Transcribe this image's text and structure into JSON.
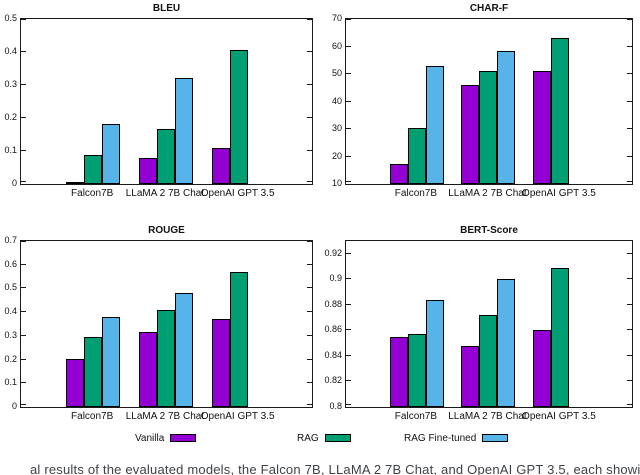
{
  "figure": {
    "background": "#ffffff",
    "series_colors": {
      "vanilla": "#9400d3",
      "rag": "#009e73",
      "rag_fine_tuned": "#56b4e9"
    }
  },
  "chart_data": [
    {
      "type": "bar",
      "title": "BLEU",
      "categories": [
        "Falcon7B",
        "LLaMA 2 7B Chat",
        "OpenAI GPT 3.5"
      ],
      "series": [
        {
          "name": "Vanilla",
          "color": "#9400d3",
          "values": [
            0.005,
            0.078,
            0.11
          ]
        },
        {
          "name": "RAG",
          "color": "#009e73",
          "values": [
            0.088,
            0.168,
            0.405
          ]
        },
        {
          "name": "RAG Fine-tuned",
          "color": "#56b4e9",
          "values": [
            0.183,
            0.322,
            null
          ]
        }
      ],
      "xlabel": "",
      "ylabel": "",
      "ylim": [
        0,
        0.5
      ],
      "yticks": [
        0,
        0.1,
        0.2,
        0.3,
        0.4,
        0.5
      ],
      "ytick_labels": [
        "0",
        "0.1",
        "0.2",
        "0.3",
        "0.4",
        "0.5"
      ],
      "grid": false,
      "legend_position": "figure-bottom"
    },
    {
      "type": "bar",
      "title": "CHAR-F",
      "categories": [
        "Falcon7B",
        "LLaMA 2 7B Chat",
        "OpenAI GPT 3.5"
      ],
      "series": [
        {
          "name": "Vanilla",
          "color": "#9400d3",
          "values": [
            17.3,
            46.0,
            51.0
          ]
        },
        {
          "name": "RAG",
          "color": "#009e73",
          "values": [
            30.3,
            51.2,
            63.2
          ]
        },
        {
          "name": "RAG Fine-tuned",
          "color": "#56b4e9",
          "values": [
            52.9,
            58.3,
            null
          ]
        }
      ],
      "xlabel": "",
      "ylabel": "",
      "ylim": [
        10,
        70
      ],
      "yticks": [
        10,
        20,
        30,
        40,
        50,
        60,
        70
      ],
      "ytick_labels": [
        "10",
        "20",
        "30",
        "40",
        "50",
        "60",
        "70"
      ],
      "grid": false,
      "legend_position": "figure-bottom"
    },
    {
      "type": "bar",
      "title": "ROUGE",
      "categories": [
        "Falcon7B",
        "LLaMA 2 7B Chat",
        "OpenAI GPT 3.5"
      ],
      "series": [
        {
          "name": "Vanilla",
          "color": "#9400d3",
          "values": [
            0.203,
            0.318,
            0.372
          ]
        },
        {
          "name": "RAG",
          "color": "#009e73",
          "values": [
            0.295,
            0.411,
            0.57
          ]
        },
        {
          "name": "RAG Fine-tuned",
          "color": "#56b4e9",
          "values": [
            0.38,
            0.482,
            null
          ]
        }
      ],
      "xlabel": "",
      "ylabel": "",
      "ylim": [
        0,
        0.7
      ],
      "yticks": [
        0,
        0.1,
        0.2,
        0.3,
        0.4,
        0.5,
        0.6,
        0.7
      ],
      "ytick_labels": [
        "0",
        "0.1",
        "0.2",
        "0.3",
        "0.4",
        "0.5",
        "0.6",
        "0.7"
      ],
      "grid": false,
      "legend_position": "figure-bottom"
    },
    {
      "type": "bar",
      "title": "BERT-Score",
      "categories": [
        "Falcon7B",
        "LLaMA 2 7B Chat",
        "OpenAI GPT 3.5"
      ],
      "series": [
        {
          "name": "Vanilla",
          "color": "#9400d3",
          "values": [
            0.855,
            0.848,
            0.86
          ]
        },
        {
          "name": "RAG",
          "color": "#009e73",
          "values": [
            0.857,
            0.872,
            0.909
          ]
        },
        {
          "name": "RAG Fine-tuned",
          "color": "#56b4e9",
          "values": [
            0.884,
            0.9,
            null
          ]
        }
      ],
      "xlabel": "",
      "ylabel": "",
      "ylim": [
        0.8,
        0.93
      ],
      "yticks": [
        0.8,
        0.82,
        0.84,
        0.86,
        0.88,
        0.9,
        0.92
      ],
      "ytick_labels": [
        "0.8",
        "0.82",
        "0.84",
        "0.86",
        "0.88",
        "0.9",
        "0.92"
      ],
      "grid": false,
      "legend_position": "figure-bottom"
    }
  ],
  "legend": {
    "entries": [
      {
        "label": "Vanilla",
        "color": "#9400d3"
      },
      {
        "label": "RAG",
        "color": "#009e73"
      },
      {
        "label": "RAG Fine-tuned",
        "color": "#56b4e9"
      }
    ]
  },
  "caption": {
    "fragment": "al results of the evaluated models, the Falcon 7B, LLaMA 2 7B Chat, and OpenAI GPT 3.5, each showing a diff"
  }
}
